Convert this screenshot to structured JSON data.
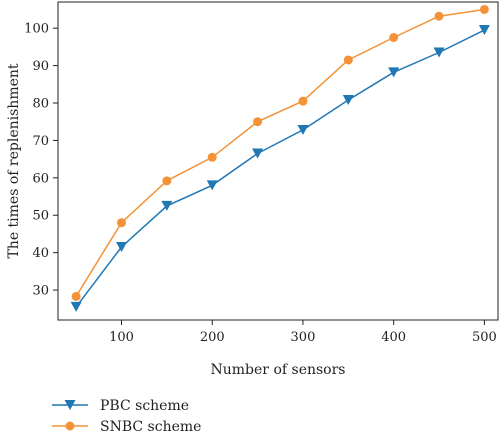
{
  "chart_data": {
    "type": "line",
    "x": [
      50,
      100,
      150,
      200,
      250,
      300,
      350,
      400,
      450,
      500
    ],
    "xlabel": "Number of sensors",
    "ylabel": "The times of replenishment",
    "xlim": [
      30,
      515
    ],
    "ylim": [
      22,
      107
    ],
    "xticks": [
      "100",
      "200",
      "300",
      "400",
      "500"
    ],
    "yticks": [
      "30",
      "40",
      "50",
      "60",
      "70",
      "80",
      "90",
      "100"
    ],
    "grid": false,
    "legend_position": "below the plot, left",
    "series": [
      {
        "name": "PBC scheme",
        "marker": "triangle-down",
        "color": "#1f77b4",
        "values": [
          25.5,
          41.5,
          52.5,
          58,
          66.5,
          72.8,
          80.8,
          88.2,
          93.5,
          99.5
        ]
      },
      {
        "name": "SNBC scheme",
        "marker": "circle",
        "color": "#f39237",
        "values": [
          28.3,
          48,
          59.2,
          65.5,
          75,
          80.5,
          91.5,
          97.5,
          103.2,
          105
        ]
      }
    ]
  }
}
